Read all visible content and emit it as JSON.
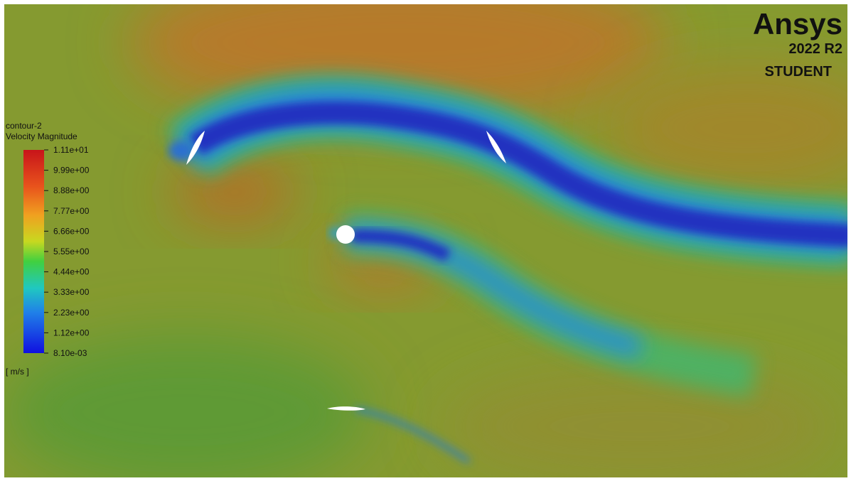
{
  "legend": {
    "title": "contour-2",
    "quantity": "Velocity Magnitude",
    "labels": [
      "1.11e+01",
      "9.99e+00",
      "8.88e+00",
      "7.77e+00",
      "6.66e+00",
      "5.55e+00",
      "4.44e+00",
      "3.33e+00",
      "2.23e+00",
      "1.12e+00",
      "8.10e-03"
    ],
    "unit": "[ m/s ]"
  },
  "brand": {
    "name": "Ansys",
    "version": "2022 R2",
    "edition": "STUDENT"
  }
}
